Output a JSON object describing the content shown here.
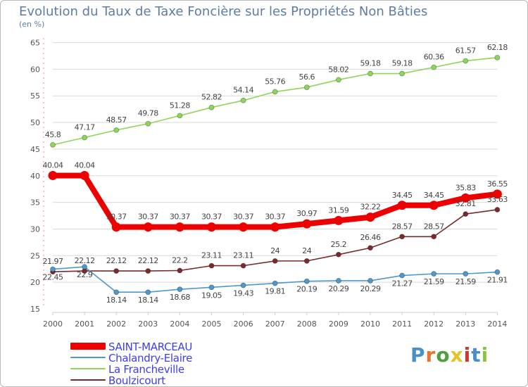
{
  "title": "Evolution du Taux de Taxe Foncière sur les Propriétés Non Bâties",
  "subtitle": "(en %)",
  "brand": "Proxiti",
  "colors": {
    "axis": "#d11a1a",
    "grid": "#d9d9d9",
    "label": "#555555",
    "legend_text": "#3d3df0",
    "title": "#5e7ca4"
  },
  "chart_data": {
    "type": "line",
    "title": "Evolution du Taux de Taxe Foncière sur les Propriétés Non Bâties",
    "ylabel": "(en %)",
    "xlabel": "",
    "x": [
      "2000",
      "2001",
      "2002",
      "2003",
      "2004",
      "2005",
      "2006",
      "2007",
      "2008",
      "2009",
      "2010",
      "2011",
      "2012",
      "2013",
      "2014"
    ],
    "ylim": [
      15,
      65
    ],
    "yticks": [
      15,
      20,
      25,
      30,
      35,
      40,
      45,
      50,
      55,
      60,
      65
    ],
    "grid": true,
    "legend_position": "bottom-left",
    "series": [
      {
        "name": "SAINT-MARCEAU",
        "color": "#ee0000",
        "values": [
          40.04,
          40.04,
          30.37,
          30.37,
          30.37,
          30.37,
          30.37,
          30.37,
          30.97,
          31.59,
          32.22,
          34.45,
          34.45,
          35.83,
          36.55
        ],
        "labels": [
          "40.04",
          "40.04",
          "30.37",
          "30.37",
          "30.37",
          "30.37",
          "30.37",
          "30.37",
          "30.97",
          "31.59",
          "32.22",
          "34.45",
          "34.45",
          "35.83",
          "36.55"
        ]
      },
      {
        "name": "Chalandry-Elaire",
        "color": "#4f98cc",
        "values": [
          22.45,
          22.9,
          18.14,
          18.14,
          18.68,
          19.05,
          19.43,
          19.81,
          20.19,
          20.29,
          20.29,
          21.27,
          21.59,
          21.59,
          21.91
        ],
        "labels": [
          "22.45",
          "22.9",
          "18.14",
          "18.14",
          "18.68",
          "19.05",
          "19.43",
          "19.81",
          "20.19",
          "20.29",
          "20.29",
          "21.27",
          "21.59",
          "21.59",
          "21.91"
        ]
      },
      {
        "name": "La Francheville",
        "color": "#8ed65a",
        "values": [
          45.8,
          47.17,
          48.57,
          49.78,
          51.28,
          52.82,
          54.14,
          55.76,
          56.6,
          58.02,
          59.18,
          59.18,
          60.36,
          61.57,
          62.18
        ],
        "labels": [
          "45.8",
          "47.17",
          "48.57",
          "49.78",
          "51.28",
          "52.82",
          "54.14",
          "55.76",
          "56.6",
          "58.02",
          "59.18",
          "59.18",
          "60.36",
          "61.57",
          "62.18"
        ]
      },
      {
        "name": "Boulzicourt",
        "color": "#7a2a2a",
        "values": [
          21.97,
          22.12,
          22.12,
          22.12,
          22.2,
          23.11,
          23.11,
          24.0,
          24.0,
          25.2,
          26.46,
          28.57,
          28.57,
          32.81,
          33.63
        ],
        "labels": [
          "21.97",
          "22.12",
          "22.12",
          "22.12",
          "22.2",
          "23.11",
          "23.11",
          "24",
          "24",
          "25.2",
          "26.46",
          "28.57",
          "28.57",
          "32.81",
          "33.63"
        ]
      }
    ]
  }
}
